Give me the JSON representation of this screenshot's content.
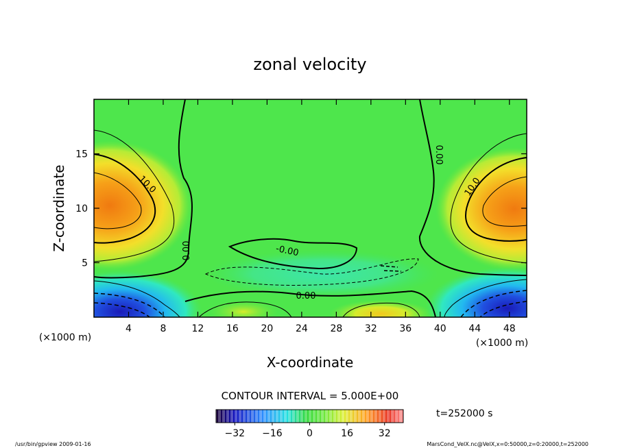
{
  "chart_data": {
    "type": "heatmap",
    "title": "zonal velocity",
    "xlabel": "X-coordinate",
    "ylabel": "Z-coordinate",
    "x_unit": "(×1000 m)",
    "y_unit": "(×1000 m)",
    "xlim": [
      0,
      50
    ],
    "ylim": [
      0,
      20
    ],
    "x_ticks": [
      4,
      8,
      12,
      16,
      20,
      24,
      28,
      32,
      36,
      40,
      44,
      48
    ],
    "y_ticks": [
      5,
      10,
      15
    ],
    "contour_interval": "CONTOUR INTERVAL = 5.000E+00",
    "contour_labels": [
      {
        "text": "10.0",
        "x": 6.0,
        "y": 11.8
      },
      {
        "text": "10.0",
        "x": 44.0,
        "y": 12.0
      },
      {
        "text": "0.00",
        "x": 11.2,
        "y": 6.5
      },
      {
        "text": "0.00",
        "x": 39.6,
        "y": 15.0
      },
      {
        "text": "-0.00",
        "x": 22.8,
        "y": 6.2
      },
      {
        "text": "0.00",
        "x": 24.5,
        "y": 2.0
      }
    ],
    "colorbar": {
      "min": -40,
      "max": 40,
      "ticks": [
        -32,
        -16,
        0,
        16,
        32
      ],
      "colors": [
        "#1a0033",
        "#1010c0",
        "#2a8cff",
        "#22e0e0",
        "#2ed83a",
        "#40f040",
        "#dcef30",
        "#ffa020",
        "#e83020",
        "#ff9090"
      ]
    },
    "time_label": "t=252000 s",
    "field_summary": [
      {
        "region": "left jet core",
        "x": 2,
        "z": 10.5,
        "value": 20
      },
      {
        "region": "right jet core",
        "x": 48,
        "z": 10.5,
        "value": 20
      },
      {
        "region": "left surface minimum",
        "x": 4,
        "z": 0.5,
        "value": -25
      },
      {
        "region": "right surface minimum",
        "x": 46,
        "z": 0.5,
        "value": -25
      },
      {
        "region": "central lower maximum",
        "x": 34,
        "z": 0.7,
        "value": 15
      }
    ]
  },
  "footer": {
    "left": "/usr/bin/gpview   2009-01-16",
    "right": "MarsCond_VelX.nc@VelX,x=0:50000,z=0:20000,t=252000"
  }
}
